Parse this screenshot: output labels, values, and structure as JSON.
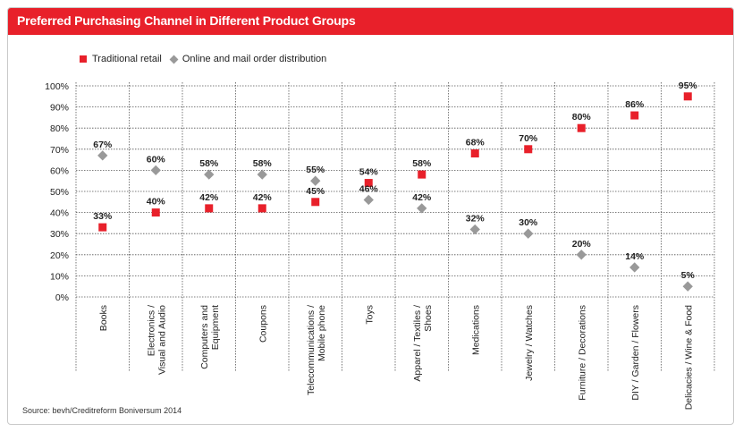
{
  "title": "Preferred Purchasing Channel in Different Product Groups",
  "source": "Source: bevh/Creditreform Boniversum 2014",
  "legend": {
    "traditional": "Traditional retail",
    "online": "Online and mail order distribution"
  },
  "colors": {
    "accent": "#e8202a",
    "online": "#999999"
  },
  "chart_data": {
    "type": "scatter",
    "categories": [
      "Books",
      "Electronics /\nVisual and Audio",
      "Computers and\nEquipment",
      "Coupons",
      "Telecommunications /\nMobile phone",
      "Toys",
      "Apparel / Textiles /\nShoes",
      "Medications",
      "Jewelry / Watches",
      "Furniture / Decorations",
      "DIY / Garden / Flowers",
      "Delicacies / Wine & Food"
    ],
    "series": [
      {
        "name": "Traditional retail",
        "marker": "square",
        "values": [
          33,
          40,
          42,
          42,
          45,
          54,
          58,
          68,
          70,
          80,
          86,
          95
        ],
        "labels": [
          "33%",
          "40%",
          "42%",
          "42%",
          "45%",
          "54%",
          "58%",
          "68%",
          "70%",
          "80%",
          "86%",
          "95%"
        ]
      },
      {
        "name": "Online and mail order distribution",
        "marker": "diamond",
        "values": [
          67,
          60,
          58,
          58,
          55,
          46,
          42,
          32,
          30,
          20,
          14,
          5
        ],
        "labels": [
          "67%",
          "60%",
          "58%",
          "58%",
          "55%",
          "46%",
          "42%",
          "32%",
          "30%",
          "20%",
          "14%",
          "5%"
        ]
      }
    ],
    "yticks": [
      "0%",
      "10%",
      "20%",
      "30%",
      "40%",
      "50%",
      "60%",
      "70%",
      "80%",
      "90%",
      "100%"
    ],
    "ylim": [
      0,
      100
    ],
    "grid": true,
    "legend_position": "top-left"
  }
}
